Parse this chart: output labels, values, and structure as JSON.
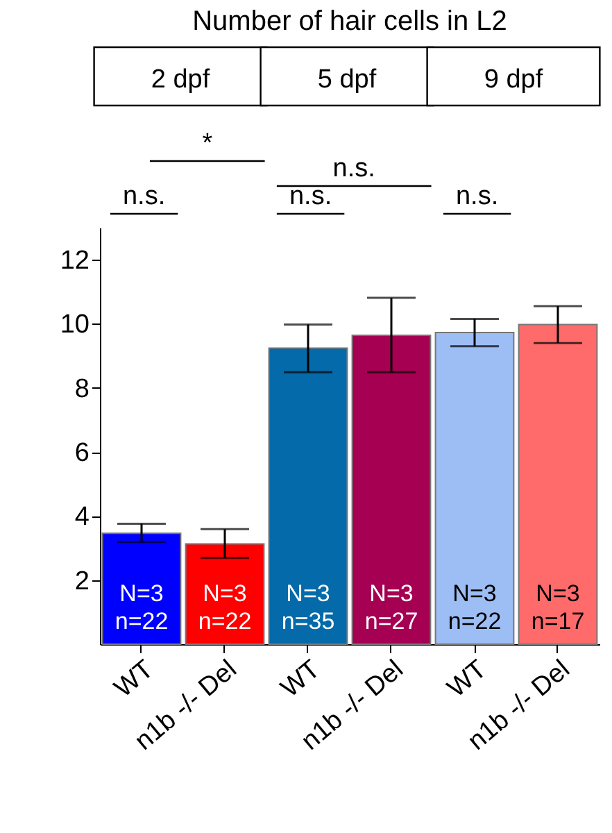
{
  "chart_data": {
    "type": "bar",
    "title": "Number of hair cells in L2",
    "categories": [
      "WT",
      "n1b -/- Del",
      "WT",
      "n1b -/- Del",
      "WT",
      "n1b -/- Del"
    ],
    "values": [
      3.46,
      3.13,
      9.24,
      9.64,
      9.73,
      9.98
    ],
    "errors": [
      [
        3.19,
        3.76
      ],
      [
        2.69,
        3.59
      ],
      [
        8.49,
        9.98
      ],
      [
        8.49,
        10.81
      ],
      [
        9.3,
        10.15
      ],
      [
        9.4,
        10.55
      ]
    ],
    "colors": [
      "#0000ff",
      "#ff0000",
      "#046aa9",
      "#a50052",
      "#9dbdf5",
      "#ff6b6b"
    ],
    "value_labels": [
      "N=3\nn=22",
      "N=3\nn=22",
      "N=3\nn=35",
      "N=3\nn=27",
      "N=3\nn=22",
      "N=3\nn=17"
    ],
    "ylim": [
      0,
      13
    ],
    "yticks": [
      2,
      4,
      6,
      8,
      10,
      12
    ],
    "grid": false,
    "annotations": [
      "2 dpf",
      "5 dpf",
      "9 dpf",
      "*",
      "n.s.",
      "n.s.",
      "n.s.",
      "n.s."
    ]
  }
}
